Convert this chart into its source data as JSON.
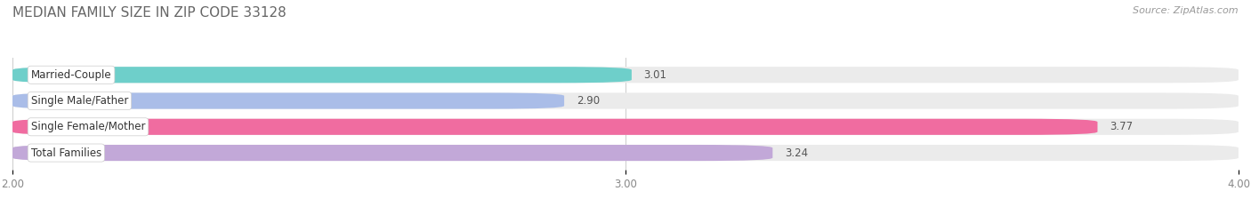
{
  "title": "MEDIAN FAMILY SIZE IN ZIP CODE 33128",
  "source": "Source: ZipAtlas.com",
  "categories": [
    "Married-Couple",
    "Single Male/Father",
    "Single Female/Mother",
    "Total Families"
  ],
  "values": [
    3.01,
    2.9,
    3.77,
    3.24
  ],
  "bar_colors": [
    "#6ECFCA",
    "#AABDE8",
    "#F06CA0",
    "#C2A8D8"
  ],
  "bar_bg_colors": [
    "#EBEBEB",
    "#EBEBEB",
    "#EBEBEB",
    "#EBEBEB"
  ],
  "xlim": [
    2.0,
    4.0
  ],
  "xticks": [
    2.0,
    3.0,
    4.0
  ],
  "xtick_labels": [
    "2.00",
    "3.00",
    "4.00"
  ],
  "figsize": [
    14.06,
    2.33
  ],
  "dpi": 100,
  "title_fontsize": 11,
  "label_fontsize": 8.5,
  "value_fontsize": 8.5,
  "source_fontsize": 8,
  "background_color": "#FFFFFF"
}
